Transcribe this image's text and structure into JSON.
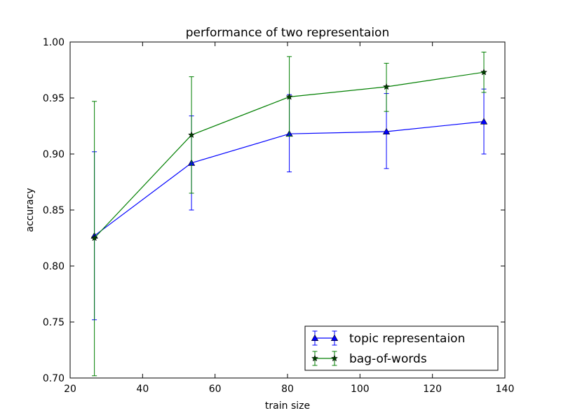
{
  "chart_data": {
    "type": "line",
    "title": "performance of two representaion",
    "xlabel": "train size",
    "ylabel": "accuracy",
    "xlim": [
      20,
      140
    ],
    "ylim": [
      0.7,
      1.0
    ],
    "xticks": [
      20,
      40,
      60,
      80,
      100,
      120,
      140
    ],
    "yticks": [
      0.7,
      0.75,
      0.8,
      0.85,
      0.9,
      0.95,
      1.0
    ],
    "xtick_labels": [
      "20",
      "40",
      "60",
      "80",
      "100",
      "120",
      "140"
    ],
    "ytick_labels": [
      "0.70",
      "0.75",
      "0.80",
      "0.85",
      "0.90",
      "0.95",
      "1.00"
    ],
    "grid": false,
    "legend_position": "lower-right",
    "x": [
      26.7,
      53.5,
      80.5,
      107.3,
      134.2
    ],
    "series": [
      {
        "name": "topic representaion",
        "color": "#0000ff",
        "marker": "triangle-up",
        "values": [
          0.827,
          0.892,
          0.918,
          0.92,
          0.929
        ],
        "error_low": [
          0.752,
          0.85,
          0.884,
          0.887,
          0.9
        ],
        "error_high": [
          0.902,
          0.934,
          0.953,
          0.954,
          0.958
        ]
      },
      {
        "name": "bag-of-words",
        "color": "#007f00",
        "marker": "star",
        "values": [
          0.825,
          0.917,
          0.951,
          0.96,
          0.973
        ],
        "error_low": [
          0.702,
          0.865,
          0.916,
          0.938,
          0.955
        ],
        "error_high": [
          0.947,
          0.969,
          0.987,
          0.981,
          0.991
        ]
      }
    ]
  }
}
